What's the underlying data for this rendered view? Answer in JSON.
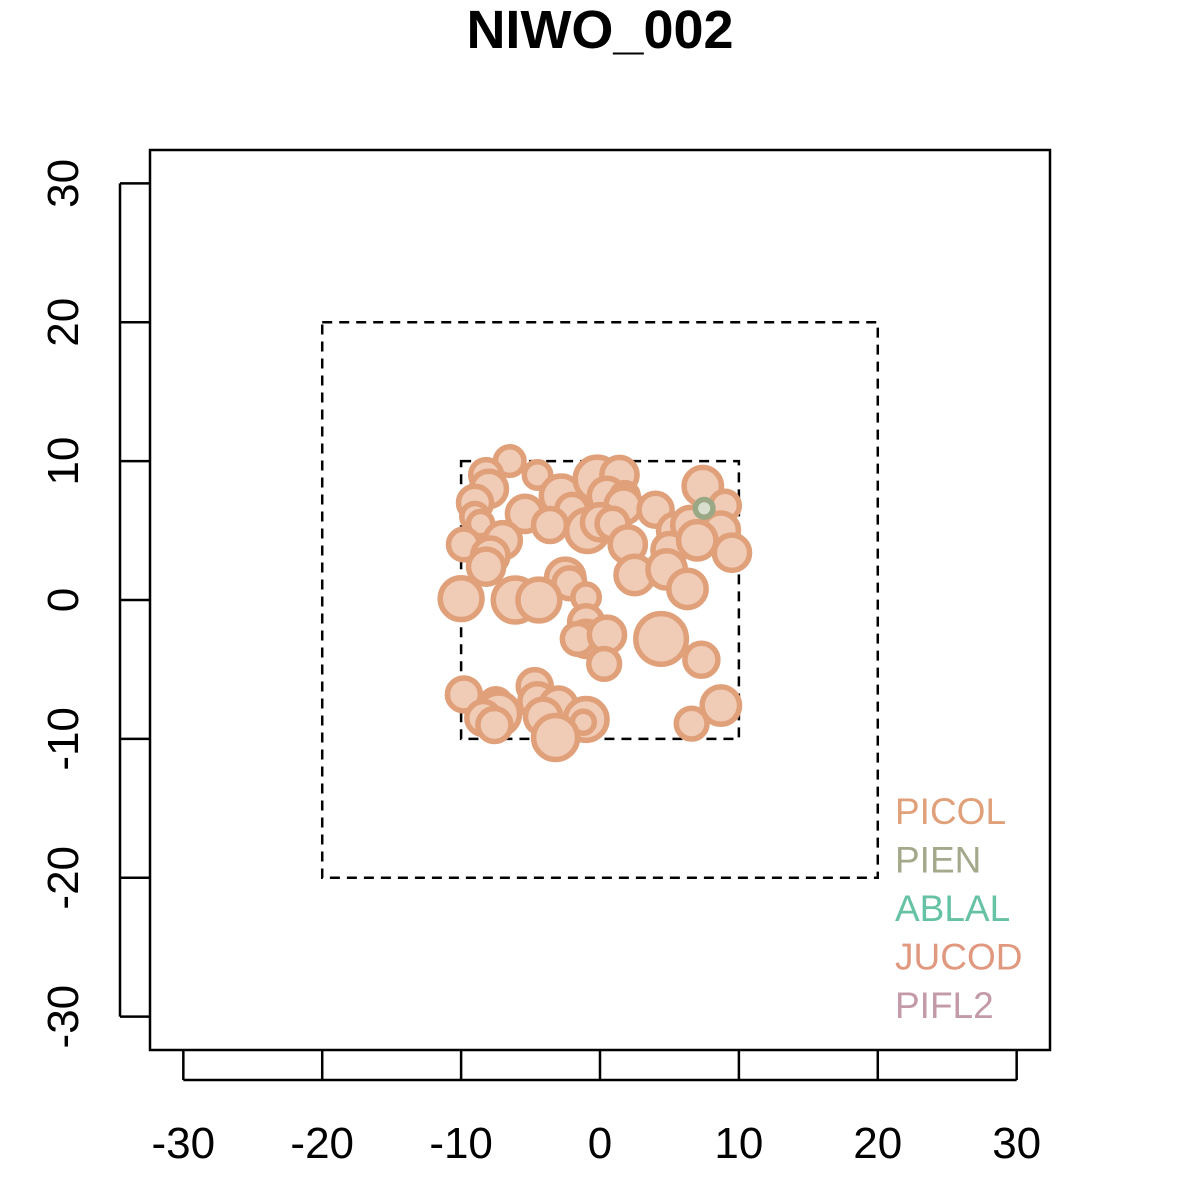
{
  "chart_data": {
    "type": "scatter",
    "title": "NIWO_002",
    "xlabel": "",
    "ylabel": "",
    "xlim": [
      -32.4,
      32.4
    ],
    "ylim": [
      -32.4,
      32.4
    ],
    "xticks": [
      -30,
      -20,
      -10,
      0,
      10,
      20,
      30
    ],
    "yticks": [
      -30,
      -20,
      -10,
      0,
      10,
      20,
      30
    ],
    "grid": false,
    "plot_boundaries": [
      {
        "name": "outer-plot",
        "xmin": -20,
        "xmax": 20,
        "ymin": -20,
        "ymax": 20,
        "style": "dashed"
      },
      {
        "name": "inner-plot",
        "xmin": -10,
        "xmax": 10,
        "ymin": -10,
        "ymax": 10,
        "style": "dashed"
      }
    ],
    "legend": {
      "position": "bottom-right",
      "entries": [
        {
          "label": "PICOL",
          "color": "#e0a07a"
        },
        {
          "label": "PIEN",
          "color": "#a3a98a"
        },
        {
          "label": "ABLAL",
          "color": "#66c2a5"
        },
        {
          "label": "JUCOD",
          "color": "#e0987e"
        },
        {
          "label": "PIFL2",
          "color": "#c49aa8"
        }
      ]
    },
    "series": [
      {
        "name": "PICOL",
        "color": "#e0a07a",
        "fill": "#f0cbb6",
        "points": [
          {
            "x": -6.5,
            "y": 10.0,
            "size": 1.3
          },
          {
            "x": -8.2,
            "y": 9.0,
            "size": 1.4
          },
          {
            "x": -8.0,
            "y": 8.0,
            "size": 1.6
          },
          {
            "x": -9.0,
            "y": 7.0,
            "size": 1.5
          },
          {
            "x": -4.5,
            "y": 9.0,
            "size": 1.2
          },
          {
            "x": -2.8,
            "y": 7.5,
            "size": 1.8
          },
          {
            "x": -2.0,
            "y": 6.5,
            "size": 1.4
          },
          {
            "x": -0.2,
            "y": 8.7,
            "size": 2.0
          },
          {
            "x": 1.4,
            "y": 9.0,
            "size": 1.6
          },
          {
            "x": 0.5,
            "y": 7.5,
            "size": 1.6
          },
          {
            "x": 1.8,
            "y": 7.5,
            "size": 1.2
          },
          {
            "x": 1.7,
            "y": 6.8,
            "size": 1.6
          },
          {
            "x": 4.0,
            "y": 6.5,
            "size": 1.5
          },
          {
            "x": 7.4,
            "y": 8.2,
            "size": 1.7
          },
          {
            "x": 9.0,
            "y": 6.8,
            "size": 1.3
          },
          {
            "x": -5.4,
            "y": 6.2,
            "size": 1.6
          },
          {
            "x": -9.0,
            "y": 6.0,
            "size": 1.2
          },
          {
            "x": -8.6,
            "y": 5.5,
            "size": 1.1
          },
          {
            "x": -3.6,
            "y": 5.4,
            "size": 1.5
          },
          {
            "x": -0.9,
            "y": 5.0,
            "size": 1.9
          },
          {
            "x": 0.0,
            "y": 5.6,
            "size": 1.6
          },
          {
            "x": 0.9,
            "y": 5.5,
            "size": 1.4
          },
          {
            "x": 5.4,
            "y": 5.0,
            "size": 1.5
          },
          {
            "x": 6.5,
            "y": 5.4,
            "size": 1.6
          },
          {
            "x": 8.7,
            "y": 5.0,
            "size": 1.6
          },
          {
            "x": -9.8,
            "y": 4.0,
            "size": 1.4
          },
          {
            "x": -7.0,
            "y": 4.3,
            "size": 1.6
          },
          {
            "x": 2.0,
            "y": 4.0,
            "size": 1.6
          },
          {
            "x": 5.0,
            "y": 3.6,
            "size": 1.5
          },
          {
            "x": 7.0,
            "y": 4.3,
            "size": 1.7
          },
          {
            "x": 9.5,
            "y": 3.4,
            "size": 1.6
          },
          {
            "x": -7.9,
            "y": 3.2,
            "size": 1.6
          },
          {
            "x": -8.2,
            "y": 2.4,
            "size": 1.6
          },
          {
            "x": 2.5,
            "y": 1.8,
            "size": 1.7
          },
          {
            "x": 4.8,
            "y": 2.2,
            "size": 1.7
          },
          {
            "x": 6.3,
            "y": 0.8,
            "size": 1.7
          },
          {
            "x": -2.5,
            "y": 1.6,
            "size": 1.7
          },
          {
            "x": -2.2,
            "y": 1.2,
            "size": 1.4
          },
          {
            "x": -10.0,
            "y": 0.1,
            "size": 1.9
          },
          {
            "x": -6.1,
            "y": 0.0,
            "size": 2.0
          },
          {
            "x": -4.4,
            "y": 0.0,
            "size": 1.9
          },
          {
            "x": -1.0,
            "y": 0.2,
            "size": 1.2
          },
          {
            "x": -1.0,
            "y": -1.6,
            "size": 1.5
          },
          {
            "x": -1.0,
            "y": -2.8,
            "size": 1.6
          },
          {
            "x": -1.6,
            "y": -2.8,
            "size": 1.4
          },
          {
            "x": 0.5,
            "y": -2.5,
            "size": 1.6
          },
          {
            "x": 4.4,
            "y": -2.8,
            "size": 2.3
          },
          {
            "x": 0.3,
            "y": -4.6,
            "size": 1.4
          },
          {
            "x": 7.3,
            "y": -4.3,
            "size": 1.5
          },
          {
            "x": -9.8,
            "y": -6.8,
            "size": 1.5
          },
          {
            "x": -4.7,
            "y": -6.2,
            "size": 1.5
          },
          {
            "x": -4.5,
            "y": -7.3,
            "size": 1.6
          },
          {
            "x": -3.0,
            "y": -7.6,
            "size": 1.6
          },
          {
            "x": -7.5,
            "y": -7.5,
            "size": 1.4
          },
          {
            "x": -7.3,
            "y": -8.2,
            "size": 1.9
          },
          {
            "x": -8.4,
            "y": -8.5,
            "size": 1.5
          },
          {
            "x": -7.6,
            "y": -9.0,
            "size": 1.5
          },
          {
            "x": -4.1,
            "y": -8.4,
            "size": 1.6
          },
          {
            "x": -1.0,
            "y": -8.6,
            "size": 1.9
          },
          {
            "x": -1.2,
            "y": -8.8,
            "size": 1.0
          },
          {
            "x": -3.2,
            "y": -9.9,
            "size": 2.0
          },
          {
            "x": 6.6,
            "y": -8.9,
            "size": 1.4
          },
          {
            "x": 8.7,
            "y": -7.6,
            "size": 1.7
          }
        ]
      },
      {
        "name": "PIEN",
        "color": "#9aa886",
        "fill": "#d8dfcf",
        "points": [
          {
            "x": 7.5,
            "y": 6.6,
            "size": 0.8
          }
        ]
      }
    ]
  }
}
